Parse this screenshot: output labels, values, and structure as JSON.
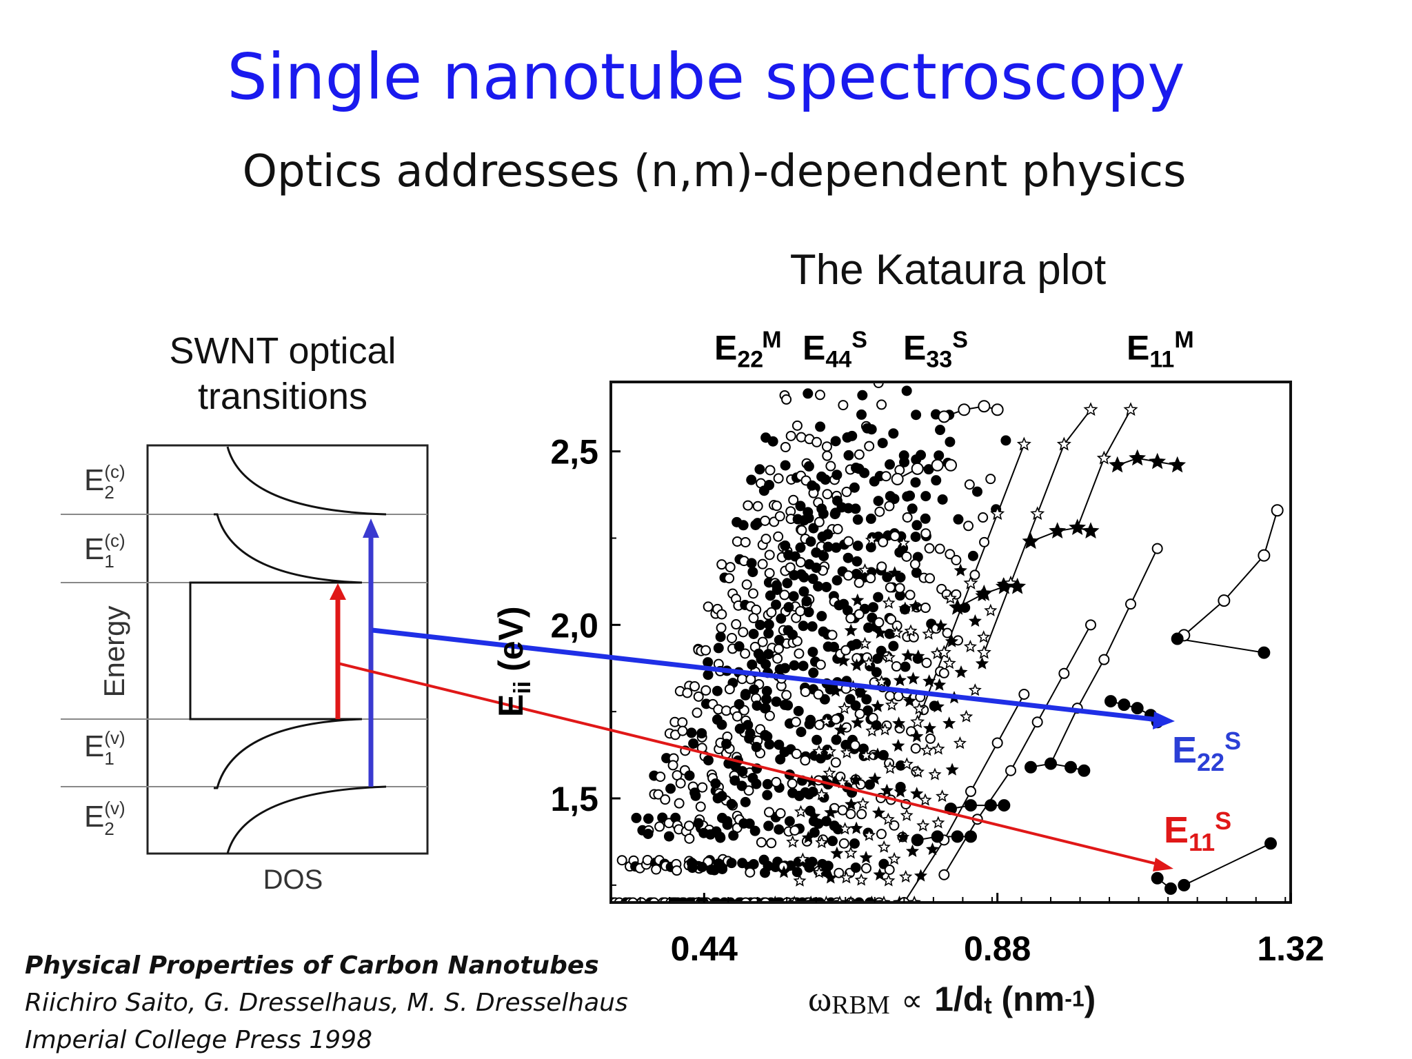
{
  "slide": {
    "title": "Single nanotube spectroscopy",
    "subtitle": "Optics addresses (n,m)-dependent physics"
  },
  "swnt_diagram": {
    "title_line1": "SWNT optical",
    "title_line2": "transitions",
    "level_labels": [
      {
        "main": "E",
        "sup": "(c)",
        "sub": "2"
      },
      {
        "main": "E",
        "sup": "(c)",
        "sub": "1"
      },
      {
        "main": "E",
        "sup": "(v)",
        "sub": "1"
      },
      {
        "main": "E",
        "sup": "(v)",
        "sub": "2"
      }
    ],
    "y_label": "Energy",
    "x_label": "DOS"
  },
  "kataura": {
    "title": "The Kataura plot",
    "top_labels": [
      {
        "main": "E",
        "sub": "22",
        "sup": "M"
      },
      {
        "main": "E",
        "sub": "44",
        "sup": "S"
      },
      {
        "main": "E",
        "sub": "33",
        "sup": "S"
      },
      {
        "main": "E",
        "sub": "11",
        "sup": "M"
      }
    ],
    "ylabel_main": "E",
    "ylabel_sub": "ii",
    "ylabel_unit": " (eV)",
    "xlabel_symbol": "ω",
    "xlabel_sub": "RBM",
    "xlabel_prop": "∝",
    "xlabel_main": "1/d",
    "xlabel_main_sub": "t",
    "xlabel_unit": " (nm",
    "xlabel_unit_sup": "-1",
    "xlabel_close": ")",
    "annotations": [
      {
        "main": "E",
        "sub": "22",
        "sup": "S",
        "color": "#2b3fd6"
      },
      {
        "main": "E",
        "sub": "11",
        "sup": "S",
        "color": "#e01818"
      }
    ]
  },
  "chart_data": {
    "type": "scatter",
    "title": "The Kataura plot",
    "xlabel": "ωRBM ∝ 1/dt (nm-1)",
    "ylabel": "Eii (eV)",
    "xlim": [
      0.3,
      1.32
    ],
    "ylim": [
      1.2,
      2.7
    ],
    "x_ticks": [
      0.44,
      0.88,
      1.32
    ],
    "y_ticks": [
      1.5,
      2.0,
      2.5
    ],
    "x_tick_labels": [
      "0.44",
      "0.88",
      "1.32"
    ],
    "y_tick_labels": [
      "1,5",
      "2,0",
      "2,5"
    ],
    "series": [
      {
        "marker": "open-circle",
        "points": [
          [
            1.16,
            1.97
          ],
          [
            1.22,
            2.07
          ],
          [
            1.28,
            2.2
          ],
          [
            1.3,
            2.33
          ]
        ]
      },
      {
        "marker": "filled-circle",
        "points": [
          [
            1.15,
            1.96
          ],
          [
            1.28,
            1.92
          ]
        ]
      },
      {
        "marker": "filled-circle",
        "points": [
          [
            1.05,
            1.78
          ],
          [
            1.07,
            1.77
          ],
          [
            1.09,
            1.76
          ],
          [
            1.11,
            1.74
          ],
          [
            1.12,
            1.72
          ]
        ]
      },
      {
        "marker": "filled-circle",
        "points": [
          [
            1.12,
            1.27
          ],
          [
            1.14,
            1.24
          ]
        ]
      },
      {
        "marker": "filled-circle",
        "points": [
          [
            1.16,
            1.25
          ],
          [
            1.29,
            1.37
          ]
        ]
      },
      {
        "marker": "star",
        "points": [
          [
            1.06,
            2.46
          ],
          [
            1.09,
            2.48
          ],
          [
            1.12,
            2.47
          ],
          [
            1.15,
            2.46
          ]
        ]
      },
      {
        "marker": "star",
        "points": [
          [
            0.93,
            2.24
          ],
          [
            0.97,
            2.27
          ],
          [
            1.0,
            2.28
          ],
          [
            1.02,
            2.27
          ]
        ]
      },
      {
        "marker": "star",
        "points": [
          [
            0.82,
            2.05
          ],
          [
            0.86,
            2.09
          ],
          [
            0.89,
            2.11
          ],
          [
            0.91,
            2.11
          ]
        ]
      },
      {
        "marker": "open-circle",
        "points": [
          [
            0.8,
            2.6
          ],
          [
            0.83,
            2.62
          ],
          [
            0.86,
            2.63
          ],
          [
            0.88,
            2.62
          ]
        ]
      },
      {
        "marker": "open-circle",
        "points": [
          [
            0.73,
            2.42
          ],
          [
            0.76,
            2.45
          ],
          [
            0.79,
            2.46
          ],
          [
            0.81,
            2.46
          ]
        ]
      },
      {
        "marker": "filled-circle",
        "points": [
          [
            0.93,
            1.59
          ],
          [
            0.96,
            1.6
          ],
          [
            0.99,
            1.59
          ],
          [
            1.01,
            1.58
          ]
        ]
      },
      {
        "marker": "filled-circle",
        "points": [
          [
            0.81,
            1.47
          ],
          [
            0.84,
            1.48
          ],
          [
            0.87,
            1.48
          ],
          [
            0.89,
            1.48
          ]
        ]
      },
      {
        "marker": "filled-circle",
        "points": [
          [
            0.76,
            1.38
          ],
          [
            0.79,
            1.39
          ],
          [
            0.82,
            1.39
          ],
          [
            0.84,
            1.39
          ]
        ]
      }
    ]
  }
}
